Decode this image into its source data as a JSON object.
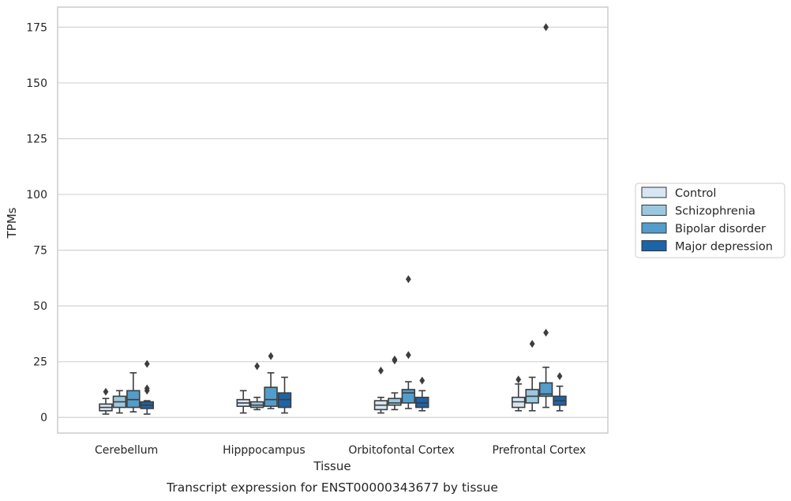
{
  "chart_data": {
    "type": "box",
    "caption": "Transcript expression for ENST00000343677 by tissue",
    "xlabel": "Tissue",
    "ylabel": "TPMs",
    "ylim": [
      -7,
      184
    ],
    "yticks": [
      0,
      25,
      50,
      75,
      100,
      125,
      150,
      175
    ],
    "grid": "horizontal",
    "legend_position": "right",
    "categories": [
      "Cerebellum",
      "Hipppocampus",
      "Orbitofontal Cortex",
      "Prefrontal Cortex"
    ],
    "series": [
      {
        "name": "Control",
        "color": "#d6e6f4",
        "boxes": [
          {
            "low": 1.5,
            "q1": 3,
            "median": 4.5,
            "q3": 6,
            "high": 8.5,
            "outliers": [
              11.5
            ]
          },
          {
            "low": 2,
            "q1": 5,
            "median": 6.5,
            "q3": 8,
            "high": 12,
            "outliers": []
          },
          {
            "low": 2,
            "q1": 3.5,
            "median": 5.5,
            "q3": 7.5,
            "high": 9,
            "outliers": [
              21
            ]
          },
          {
            "low": 3,
            "q1": 4.5,
            "median": 7,
            "q3": 9,
            "high": 15,
            "outliers": [
              17
            ]
          }
        ]
      },
      {
        "name": "Schizophrenia",
        "color": "#9ac8e0",
        "boxes": [
          {
            "low": 2,
            "q1": 4.5,
            "median": 7,
            "q3": 9.5,
            "high": 12,
            "outliers": []
          },
          {
            "low": 3.5,
            "q1": 4.5,
            "median": 5.5,
            "q3": 7,
            "high": 9,
            "outliers": [
              23
            ]
          },
          {
            "low": 3.5,
            "q1": 5.5,
            "median": 6.5,
            "q3": 8.5,
            "high": 11,
            "outliers": [
              25.5,
              26
            ]
          },
          {
            "low": 3,
            "q1": 6.5,
            "median": 9.5,
            "q3": 12.5,
            "high": 18,
            "outliers": [
              33
            ]
          }
        ]
      },
      {
        "name": "Bipolar disorder",
        "color": "#529dcc",
        "boxes": [
          {
            "low": 2.5,
            "q1": 4.5,
            "median": 8,
            "q3": 12,
            "high": 20,
            "outliers": []
          },
          {
            "low": 4,
            "q1": 5,
            "median": 8,
            "q3": 13.5,
            "high": 20,
            "outliers": [
              27.5
            ]
          },
          {
            "low": 4,
            "q1": 6.5,
            "median": 11,
            "q3": 12.5,
            "high": 16,
            "outliers": [
              28,
              62
            ]
          },
          {
            "low": 4.5,
            "q1": 9.5,
            "median": 10.5,
            "q3": 15.5,
            "high": 22.5,
            "outliers": [
              38,
              175
            ]
          }
        ]
      },
      {
        "name": "Major depression",
        "color": "#1c64a8",
        "boxes": [
          {
            "low": 1.5,
            "q1": 4,
            "median": 5.5,
            "q3": 7,
            "high": 7.5,
            "outliers": [
              12,
              13,
              24
            ]
          },
          {
            "low": 2,
            "q1": 4.5,
            "median": 8,
            "q3": 11,
            "high": 18,
            "outliers": []
          },
          {
            "low": 3,
            "q1": 4.5,
            "median": 6.5,
            "q3": 9,
            "high": 12,
            "outliers": [
              16.5
            ]
          },
          {
            "low": 3,
            "q1": 5.5,
            "median": 7.5,
            "q3": 9.5,
            "high": 14,
            "outliers": [
              18.5
            ]
          }
        ]
      }
    ]
  }
}
